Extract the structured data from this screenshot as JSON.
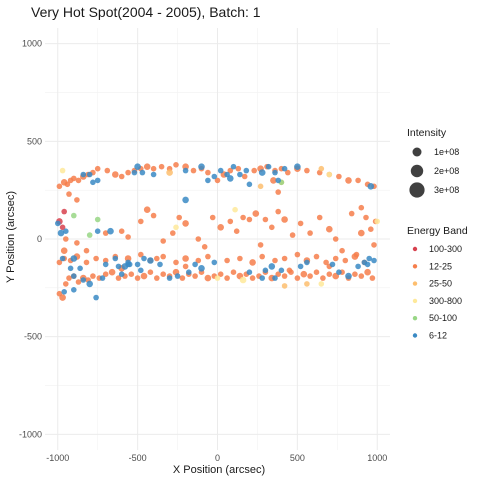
{
  "chart_data": {
    "type": "scatter",
    "title": "Very Hot Spot(2004 - 2005), Batch: 1",
    "xlabel": "X Position (arcsec)",
    "ylabel": "Y Position (arcsec)",
    "xlim": [
      -1080,
      1080
    ],
    "ylim": [
      -1080,
      1080
    ],
    "x_ticks": [
      -1000,
      -500,
      0,
      500,
      1000
    ],
    "y_ticks": [
      -1000,
      -500,
      0,
      500,
      1000
    ],
    "grid": true,
    "legend_position": "right",
    "size_legend": {
      "title": "Intensity",
      "entries": [
        {
          "label": "1e+08",
          "value": 100000000
        },
        {
          "label": "2e+08",
          "value": 200000000
        },
        {
          "label": "3e+08",
          "value": 300000000
        }
      ]
    },
    "color_legend": {
      "title": "Energy Band",
      "entries": [
        {
          "label": "100-300",
          "color": "#D7414E"
        },
        {
          "label": "12-25",
          "color": "#F67E4B"
        },
        {
          "label": "25-50",
          "color": "#FDBE6E"
        },
        {
          "label": "300-800",
          "color": "#FEE99A"
        },
        {
          "label": "50-100",
          "color": "#98D685"
        },
        {
          "label": "6-12",
          "color": "#3A8AC4"
        }
      ]
    },
    "series": [
      {
        "name": "100-300",
        "color": "#D7414E",
        "points": [
          [
            -990,
            90
          ],
          [
            -960,
            140
          ],
          [
            -970,
            60
          ]
        ]
      },
      {
        "name": "12-25",
        "color": "#F67E4B",
        "points": [
          [
            -990,
            270
          ],
          [
            -960,
            290
          ],
          [
            -940,
            280
          ],
          [
            -920,
            300
          ],
          [
            -900,
            310
          ],
          [
            -870,
            300
          ],
          [
            -840,
            320
          ],
          [
            -810,
            330
          ],
          [
            -780,
            340
          ],
          [
            -750,
            360
          ],
          [
            -690,
            350
          ],
          [
            -640,
            330
          ],
          [
            -600,
            320
          ],
          [
            -560,
            340
          ],
          [
            -520,
            350
          ],
          [
            -480,
            360
          ],
          [
            -440,
            370
          ],
          [
            -400,
            360
          ],
          [
            -350,
            370
          ],
          [
            -300,
            360
          ],
          [
            -260,
            380
          ],
          [
            -200,
            370
          ],
          [
            -150,
            350
          ],
          [
            -100,
            360
          ],
          [
            -60,
            340
          ],
          [
            0,
            300
          ],
          [
            40,
            330
          ],
          [
            80,
            350
          ],
          [
            130,
            360
          ],
          [
            170,
            320
          ],
          [
            230,
            350
          ],
          [
            270,
            360
          ],
          [
            310,
            370
          ],
          [
            360,
            350
          ],
          [
            400,
            360
          ],
          [
            440,
            340
          ],
          [
            500,
            360
          ],
          [
            560,
            350
          ],
          [
            640,
            340
          ],
          [
            700,
            330
          ],
          [
            760,
            320
          ],
          [
            820,
            300
          ],
          [
            880,
            300
          ],
          [
            940,
            280
          ],
          [
            980,
            270
          ],
          [
            -990,
            -280
          ],
          [
            -970,
            -300
          ],
          [
            -950,
            -230
          ],
          [
            -930,
            -200
          ],
          [
            -900,
            -190
          ],
          [
            -870,
            -220
          ],
          [
            -840,
            -200
          ],
          [
            -810,
            -210
          ],
          [
            -780,
            -190
          ],
          [
            -740,
            -200
          ],
          [
            -700,
            -180
          ],
          [
            -660,
            -170
          ],
          [
            -620,
            -200
          ],
          [
            -580,
            -190
          ],
          [
            -540,
            -180
          ],
          [
            -500,
            -200
          ],
          [
            -460,
            -190
          ],
          [
            -420,
            -170
          ],
          [
            -380,
            -200
          ],
          [
            -340,
            -180
          ],
          [
            -300,
            -190
          ],
          [
            -260,
            -170
          ],
          [
            -220,
            -200
          ],
          [
            -180,
            -180
          ],
          [
            -140,
            -190
          ],
          [
            -100,
            -170
          ],
          [
            -60,
            -200
          ],
          [
            -20,
            -190
          ],
          [
            20,
            -180
          ],
          [
            60,
            -200
          ],
          [
            100,
            -170
          ],
          [
            140,
            -190
          ],
          [
            180,
            -180
          ],
          [
            220,
            -200
          ],
          [
            260,
            -190
          ],
          [
            300,
            -170
          ],
          [
            340,
            -200
          ],
          [
            380,
            -180
          ],
          [
            420,
            -190
          ],
          [
            460,
            -170
          ],
          [
            500,
            -200
          ],
          [
            540,
            -180
          ],
          [
            580,
            -190
          ],
          [
            620,
            -170
          ],
          [
            660,
            -200
          ],
          [
            700,
            -180
          ],
          [
            740,
            -190
          ],
          [
            780,
            -170
          ],
          [
            820,
            -200
          ],
          [
            860,
            -180
          ],
          [
            900,
            -190
          ],
          [
            940,
            -170
          ],
          [
            970,
            -200
          ],
          [
            -990,
            -120
          ],
          [
            -960,
            -100
          ],
          [
            -920,
            -110
          ],
          [
            -880,
            -90
          ],
          [
            -820,
            -120
          ],
          [
            -760,
            -100
          ],
          [
            -700,
            -110
          ],
          [
            -640,
            -90
          ],
          [
            -560,
            -100
          ],
          [
            -480,
            -80
          ],
          [
            -420,
            -110
          ],
          [
            -340,
            -90
          ],
          [
            -260,
            -120
          ],
          [
            -200,
            -100
          ],
          [
            -120,
            -110
          ],
          [
            -60,
            -90
          ],
          [
            60,
            -110
          ],
          [
            140,
            -100
          ],
          [
            220,
            -120
          ],
          [
            280,
            -90
          ],
          [
            360,
            -110
          ],
          [
            420,
            -100
          ],
          [
            500,
            -80
          ],
          [
            560,
            -110
          ],
          [
            620,
            -90
          ],
          [
            680,
            -120
          ],
          [
            740,
            -100
          ],
          [
            800,
            -110
          ],
          [
            860,
            -90
          ],
          [
            920,
            -120
          ],
          [
            -950,
            0
          ],
          [
            -880,
            -20
          ],
          [
            -820,
            -60
          ],
          [
            -960,
            -60
          ],
          [
            -700,
            30
          ],
          [
            -600,
            40
          ],
          [
            -560,
            10
          ],
          [
            -480,
            90
          ],
          [
            -440,
            150
          ],
          [
            -400,
            120
          ],
          [
            -340,
            -10
          ],
          [
            -280,
            30
          ],
          [
            -240,
            110
          ],
          [
            -200,
            80
          ],
          [
            -120,
            0
          ],
          [
            -80,
            -40
          ],
          [
            -30,
            110
          ],
          [
            -380,
            -100
          ],
          [
            20,
            60
          ],
          [
            80,
            90
          ],
          [
            120,
            40
          ],
          [
            160,
            110
          ],
          [
            200,
            100
          ],
          [
            240,
            130
          ],
          [
            270,
            -30
          ],
          [
            300,
            100
          ],
          [
            340,
            60
          ],
          [
            380,
            140
          ],
          [
            420,
            100
          ],
          [
            470,
            20
          ],
          [
            520,
            80
          ],
          [
            580,
            30
          ],
          [
            640,
            110
          ],
          [
            700,
            50
          ],
          [
            740,
            0
          ],
          [
            780,
            -60
          ],
          [
            840,
            130
          ],
          [
            870,
            -80
          ],
          [
            900,
            30
          ],
          [
            930,
            110
          ],
          [
            960,
            50
          ],
          [
            980,
            -30
          ],
          [
            990,
            90
          ],
          [
            350,
            300
          ],
          [
            380,
            240
          ],
          [
            -880,
            200
          ],
          [
            -930,
            230
          ],
          [
            900,
            160
          ],
          [
            -600,
            -150
          ],
          [
            450,
            -160
          ],
          [
            -200,
            -140
          ],
          [
            700,
            -140
          ]
        ]
      },
      {
        "name": "25-50",
        "color": "#FDBE6E",
        "points": [
          [
            270,
            270
          ],
          [
            400,
            290
          ],
          [
            -300,
            340
          ],
          [
            650,
            360
          ],
          [
            420,
            -240
          ],
          [
            560,
            -230
          ]
        ]
      },
      {
        "name": "300-800",
        "color": "#FEE99A",
        "points": [
          [
            -970,
            350
          ],
          [
            -260,
            60
          ],
          [
            0,
            -200
          ],
          [
            160,
            -210
          ],
          [
            650,
            -230
          ],
          [
            700,
            330
          ],
          [
            1000,
            90
          ],
          [
            110,
            150
          ]
        ]
      },
      {
        "name": "50-100",
        "color": "#98D685",
        "points": [
          [
            -750,
            100
          ],
          [
            -900,
            120
          ],
          [
            400,
            290
          ],
          [
            -800,
            20
          ]
        ]
      },
      {
        "name": "6-12",
        "color": "#3A8AC4",
        "points": [
          [
            -980,
            30
          ],
          [
            -950,
            40
          ],
          [
            -970,
            -100
          ],
          [
            -1000,
            80
          ],
          [
            -920,
            -150
          ],
          [
            -900,
            -100
          ],
          [
            -840,
            330
          ],
          [
            -800,
            330
          ],
          [
            -780,
            290
          ],
          [
            -750,
            300
          ],
          [
            -500,
            370
          ],
          [
            -470,
            340
          ],
          [
            -520,
            340
          ],
          [
            -400,
            330
          ],
          [
            -200,
            350
          ],
          [
            -100,
            370
          ],
          [
            -60,
            300
          ],
          [
            -20,
            320
          ],
          [
            20,
            350
          ],
          [
            60,
            330
          ],
          [
            80,
            310
          ],
          [
            100,
            370
          ],
          [
            140,
            330
          ],
          [
            180,
            350
          ],
          [
            200,
            280
          ],
          [
            280,
            340
          ],
          [
            320,
            370
          ],
          [
            360,
            340
          ],
          [
            380,
            300
          ],
          [
            420,
            360
          ],
          [
            500,
            370
          ],
          [
            -700,
            -130
          ],
          [
            -620,
            -140
          ],
          [
            -560,
            -120
          ],
          [
            -500,
            -130
          ],
          [
            -420,
            -110
          ],
          [
            -360,
            -130
          ],
          [
            -480,
            -160
          ],
          [
            -600,
            -180
          ],
          [
            -640,
            -100
          ],
          [
            -580,
            -140
          ],
          [
            -550,
            -130
          ],
          [
            -460,
            -100
          ],
          [
            -180,
            -170
          ],
          [
            -140,
            -130
          ],
          [
            -100,
            -150
          ],
          [
            -20,
            -120
          ],
          [
            200,
            -170
          ],
          [
            280,
            -200
          ],
          [
            300,
            -160
          ],
          [
            340,
            -140
          ],
          [
            400,
            -160
          ],
          [
            520,
            -140
          ],
          [
            560,
            -120
          ],
          [
            760,
            -170
          ],
          [
            820,
            -190
          ],
          [
            880,
            -140
          ],
          [
            920,
            -120
          ],
          [
            950,
            -100
          ],
          [
            980,
            -110
          ],
          [
            960,
            270
          ],
          [
            940,
            -130
          ],
          [
            -560,
            -130
          ],
          [
            -860,
            -150
          ],
          [
            -900,
            -190
          ],
          [
            -800,
            -230
          ],
          [
            -760,
            -300
          ],
          [
            -900,
            -260
          ],
          [
            -840,
            -210
          ],
          [
            -960,
            -270
          ],
          [
            -200,
            200
          ],
          [
            360,
            -200
          ],
          [
            720,
            -130
          ],
          [
            -720,
            -200
          ],
          [
            -750,
            40
          ],
          [
            -670,
            40
          ],
          [
            -300,
            -200
          ],
          [
            -250,
            -190
          ]
        ]
      }
    ]
  }
}
